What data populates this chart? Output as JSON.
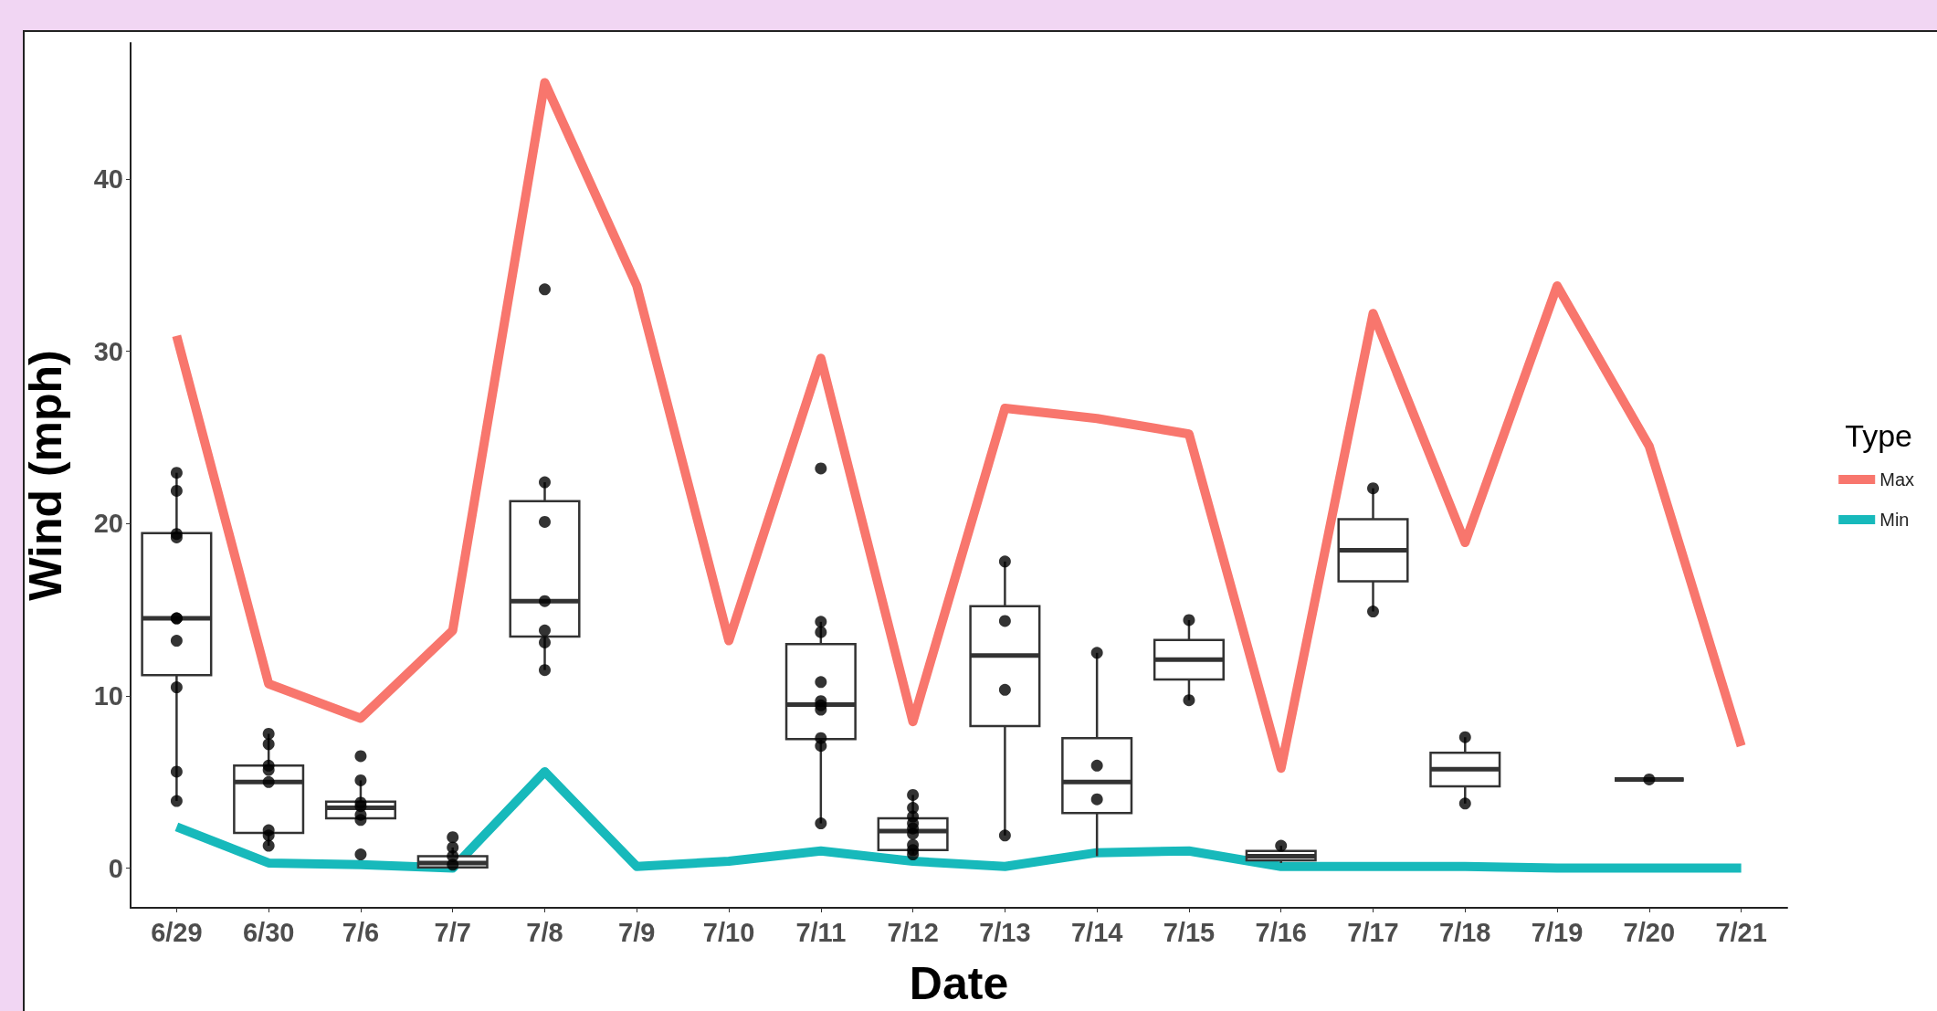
{
  "chart_data": {
    "type": "line",
    "xlabel": "Date",
    "ylabel": "Wind (mph)",
    "legend_title": "Type",
    "legend": "right",
    "grid": false,
    "marker": "none",
    "categories": [
      "6/29",
      "6/30",
      "7/6",
      "7/7",
      "7/8",
      "7/9",
      "7/10",
      "7/11",
      "7/12",
      "7/13",
      "7/14",
      "7/15",
      "7/16",
      "7/17",
      "7/18",
      "7/19",
      "7/20",
      "7/21"
    ],
    "ylim": [
      -2.3,
      47.9
    ],
    "yticks": [
      0,
      10,
      20,
      30,
      40
    ],
    "series": [
      {
        "type": "box",
        "color": "#333333",
        "boxes": [
          {
            "low": 3.9,
            "q1": 11.2,
            "median": 14.5,
            "q3": 19.45,
            "high": 22.95
          },
          {
            "low": 1.3,
            "q1": 2.05,
            "median": 5.0,
            "q3": 5.95,
            "high": 7.8
          },
          {
            "low": 2.8,
            "q1": 2.9,
            "median": 3.5,
            "q3": 3.86,
            "high": 5.1
          },
          {
            "low": 0.0,
            "q1": 0.05,
            "median": 0.3,
            "q3": 0.7,
            "high": 1.2
          },
          {
            "low": 11.5,
            "q1": 13.45,
            "median": 15.5,
            "q3": 21.3,
            "high": 22.4
          },
          null,
          null,
          {
            "low": 2.6,
            "q1": 7.5,
            "median": 9.5,
            "q3": 13.0,
            "high": 14.3
          },
          {
            "low": 0.8,
            "q1": 1.05,
            "median": 2.15,
            "q3": 2.9,
            "high": 4.25
          },
          {
            "low": 1.9,
            "q1": 8.25,
            "median": 12.35,
            "q3": 15.2,
            "high": 17.8
          },
          {
            "low": 0.7,
            "q1": 3.2,
            "median": 5.0,
            "q3": 7.55,
            "high": 12.5
          },
          {
            "low": 9.75,
            "q1": 10.95,
            "median": 12.1,
            "q3": 13.25,
            "high": 14.4
          },
          {
            "low": 0.3,
            "q1": 0.45,
            "median": 0.7,
            "q3": 1.0,
            "high": 1.3
          },
          {
            "low": 14.9,
            "q1": 16.65,
            "median": 18.45,
            "q3": 20.25,
            "high": 22.05
          },
          {
            "low": 3.75,
            "q1": 4.75,
            "median": 5.75,
            "q3": 6.7,
            "high": 7.6
          },
          null,
          {
            "low": 5.15,
            "q1": 5.15,
            "median": 5.15,
            "q3": 5.15,
            "high": 5.15
          },
          null
        ]
      },
      {
        "type": "scatter",
        "color": "#000000",
        "marker": "circle",
        "x": [
          "6/29",
          "6/29",
          "6/29",
          "6/29",
          "6/29",
          "6/29",
          "6/29",
          "6/29",
          "6/29",
          "6/29",
          "6/30",
          "6/30",
          "6/30",
          "6/30",
          "6/30",
          "6/30",
          "6/30",
          "6/30",
          "7/6",
          "7/6",
          "7/6",
          "7/6",
          "7/6",
          "7/6",
          "7/6",
          "7/7",
          "7/7",
          "7/7",
          "7/7",
          "7/8",
          "7/8",
          "7/8",
          "7/8",
          "7/8",
          "7/8",
          "7/8",
          "7/11",
          "7/11",
          "7/11",
          "7/11",
          "7/11",
          "7/11",
          "7/11",
          "7/11",
          "7/11",
          "7/11",
          "7/12",
          "7/12",
          "7/12",
          "7/12",
          "7/12",
          "7/12",
          "7/12",
          "7/12",
          "7/12",
          "7/13",
          "7/13",
          "7/13",
          "7/13",
          "7/14",
          "7/14",
          "7/14",
          "7/15",
          "7/15",
          "7/16",
          "7/17",
          "7/17",
          "7/18",
          "7/18",
          "7/20"
        ],
        "values": [
          22.95,
          21.9,
          19.4,
          19.2,
          14.5,
          14.5,
          13.2,
          10.5,
          5.6,
          3.9,
          7.8,
          7.2,
          5.95,
          5.7,
          5.0,
          2.2,
          1.9,
          1.3,
          6.5,
          5.1,
          3.8,
          3.6,
          3.1,
          2.8,
          0.8,
          1.8,
          1.2,
          0.7,
          0.2,
          33.6,
          22.4,
          20.1,
          15.5,
          13.8,
          13.1,
          11.5,
          23.2,
          14.3,
          13.7,
          10.8,
          9.7,
          9.45,
          9.2,
          7.55,
          7.1,
          2.6,
          4.25,
          3.5,
          3.0,
          2.6,
          2.3,
          2.0,
          1.35,
          1.05,
          0.8,
          17.8,
          14.35,
          10.35,
          1.9,
          12.5,
          5.95,
          4.0,
          14.4,
          9.75,
          1.3,
          22.05,
          14.9,
          7.6,
          3.75,
          5.15
        ]
      },
      {
        "name": "Max",
        "color": "#f8766d",
        "values": [
          30.9,
          10.7,
          8.7,
          13.8,
          45.6,
          33.8,
          13.2,
          29.6,
          8.5,
          26.7,
          26.1,
          25.2,
          5.8,
          32.2,
          18.9,
          33.8,
          24.5,
          7.1
        ]
      },
      {
        "name": "Min",
        "color": "#17b9bb",
        "values": [
          2.4,
          0.3,
          0.2,
          0.0,
          5.6,
          0.1,
          0.4,
          1.0,
          0.4,
          0.1,
          0.9,
          1.0,
          0.1,
          0.1,
          0.1,
          0.0,
          0.0,
          0.0
        ]
      }
    ]
  }
}
